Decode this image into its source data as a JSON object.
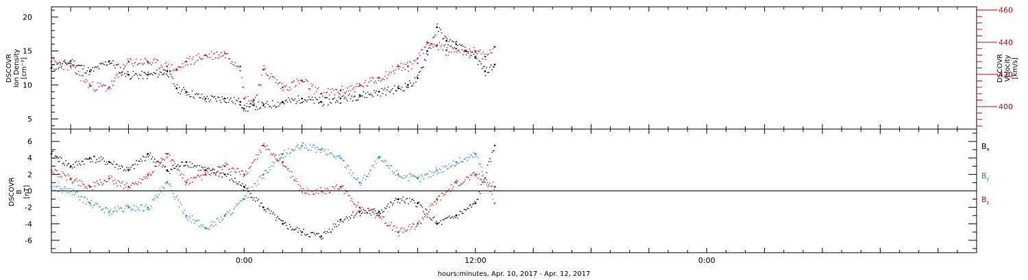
{
  "chart_data": [
    {
      "type": "scatter",
      "panel": "top",
      "ylabel_left": [
        "DSCOVR",
        "Ion Density",
        "[cm⁻³]"
      ],
      "ylabel_right": [
        "DSCOVR",
        "Velocity",
        "[km/s]"
      ],
      "ylim_left": [
        3.5,
        21.5
      ],
      "ylim_right": [
        386,
        462
      ],
      "yticks_left": [
        5,
        10,
        15,
        20
      ],
      "yticks_right": [
        400,
        420,
        440,
        460
      ],
      "right_axis_color": "#e00000",
      "x_hours": [
        -10,
        -9,
        -8,
        -7,
        -6,
        -5,
        -4,
        -3.5,
        -3,
        -2,
        -1,
        -0.2,
        0,
        0.5,
        1,
        2,
        3,
        4,
        5,
        6,
        7,
        8,
        8.5,
        9,
        9.5,
        10,
        10.5,
        11,
        11.5,
        12,
        12.5,
        13
      ],
      "series": [
        {
          "color": "#000000",
          "axis": "left",
          "values": [
            12.5,
            13.5,
            12.0,
            13.5,
            11.5,
            11.5,
            12.0,
            9.5,
            9.0,
            8.0,
            8.0,
            7.5,
            6.5,
            7.0,
            7.0,
            7.5,
            8.0,
            7.5,
            8.0,
            8.5,
            9.0,
            9.5,
            10.0,
            11.0,
            15.0,
            18.5,
            16.5,
            16.0,
            15.0,
            14.0,
            12.0,
            13.0
          ]
        },
        {
          "color": "#e00000",
          "axis": "right",
          "values": [
            428,
            425,
            413,
            412,
            428,
            428,
            425,
            423,
            428,
            432,
            433,
            425,
            405,
            404,
            423,
            412,
            416,
            408,
            410,
            413,
            418,
            425,
            425,
            430,
            440,
            438,
            435,
            436,
            435,
            434,
            431,
            437
          ]
        }
      ]
    },
    {
      "type": "scatter",
      "panel": "bottom",
      "ylabel_left": [
        "DSCOVR",
        "B",
        "[nT]"
      ],
      "ylim": [
        -7.5,
        7.5
      ],
      "yticks": [
        -6,
        -4,
        -2,
        0,
        2,
        4,
        6
      ],
      "x_hours": [
        -10,
        -9,
        -8,
        -7,
        -6,
        -5,
        -4,
        -3,
        -2,
        -1,
        0,
        1,
        2,
        3,
        4,
        5,
        6,
        7,
        8,
        9,
        10,
        11,
        12,
        13
      ],
      "series": [
        {
          "name": "Bx",
          "color": "#000000",
          "values": [
            4.5,
            3.0,
            4.0,
            3.5,
            2.5,
            4.5,
            2.5,
            3.5,
            2.5,
            2.0,
            0.5,
            -2.0,
            -4.0,
            -5.0,
            -5.5,
            -3.5,
            -2.5,
            -2.5,
            -1.0,
            -1.5,
            -4.0,
            -3.0,
            -1.5,
            5.5
          ]
        },
        {
          "name": "By",
          "color": "#1a7ed8",
          "values": [
            0.5,
            0.0,
            -1.5,
            -2.5,
            -2.0,
            -2.0,
            1.0,
            -3.0,
            -4.5,
            -3.0,
            -1.0,
            2.0,
            4.5,
            5.5,
            5.0,
            4.0,
            1.0,
            4.0,
            2.0,
            1.5,
            2.5,
            3.5,
            4.5,
            -1.5
          ]
        },
        {
          "name": "Bz",
          "color": "#e00000",
          "values": [
            2.5,
            1.5,
            0.5,
            1.5,
            0.5,
            2.0,
            4.5,
            1.0,
            2.0,
            3.0,
            2.0,
            5.5,
            3.5,
            0.0,
            0.0,
            0.5,
            -2.0,
            -3.0,
            -5.0,
            -4.0,
            -1.0,
            1.0,
            2.0,
            0.5
          ]
        }
      ]
    }
  ],
  "x_axis": {
    "xlim_hours": [
      -10,
      38
    ],
    "ticks": [
      {
        "hours": 0,
        "label": "0:00"
      },
      {
        "hours": 12,
        "label": "12:00"
      },
      {
        "hours": 24,
        "label": "0:00"
      }
    ],
    "title": "hours:minutes, Apr. 10, 2017 - Apr. 12, 2017"
  },
  "legend": [
    {
      "base": "B",
      "sub": "x",
      "color": "#000000"
    },
    {
      "base": "B",
      "sub": "y",
      "color": "#1a7ed8"
    },
    {
      "base": "B",
      "sub": "z",
      "color": "#e00000"
    }
  ]
}
